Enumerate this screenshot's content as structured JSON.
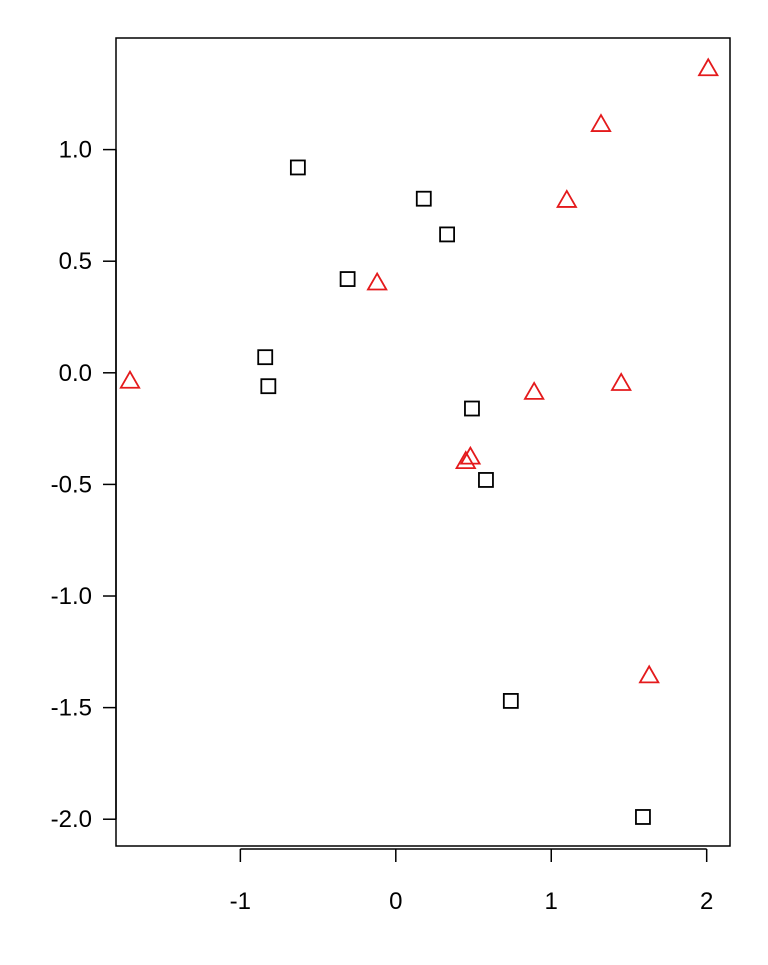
{
  "chart_data": {
    "type": "scatter",
    "title": "",
    "xlabel": "",
    "ylabel": "",
    "xlim": [
      -1.8,
      2.15
    ],
    "ylim": [
      -2.12,
      1.5
    ],
    "grid": false,
    "legend": "none",
    "x_ticks": [
      -1,
      0,
      1,
      2
    ],
    "x_tick_labels": [
      "-1",
      "0",
      "1",
      "2"
    ],
    "y_ticks": [
      -2.0,
      -1.5,
      -1.0,
      -0.5,
      0.0,
      0.5,
      1.0
    ],
    "y_tick_labels": [
      "-2.0",
      "-1.5",
      "-1.0",
      "-0.5",
      "0.0",
      "0.5",
      "1.0"
    ],
    "series": [
      {
        "marker": "square",
        "color": "#000000",
        "points": [
          {
            "x": -0.63,
            "y": 0.92
          },
          {
            "x": 0.18,
            "y": 0.78
          },
          {
            "x": 0.33,
            "y": 0.62
          },
          {
            "x": -0.31,
            "y": 0.42
          },
          {
            "x": -0.84,
            "y": 0.07
          },
          {
            "x": -0.82,
            "y": -0.06
          },
          {
            "x": 0.49,
            "y": -0.16
          },
          {
            "x": 0.58,
            "y": -0.48
          },
          {
            "x": 0.74,
            "y": -1.47
          },
          {
            "x": 1.59,
            "y": -1.99
          }
        ]
      },
      {
        "marker": "triangle",
        "color": "#e41a1c",
        "points": [
          {
            "x": 2.01,
            "y": 1.36
          },
          {
            "x": 1.32,
            "y": 1.11
          },
          {
            "x": 1.1,
            "y": 0.77
          },
          {
            "x": -0.12,
            "y": 0.4
          },
          {
            "x": -1.71,
            "y": -0.04
          },
          {
            "x": 0.89,
            "y": -0.09
          },
          {
            "x": 1.45,
            "y": -0.05
          },
          {
            "x": 0.48,
            "y": -0.38
          },
          {
            "x": 0.45,
            "y": -0.4
          },
          {
            "x": 1.63,
            "y": -1.36
          }
        ]
      }
    ]
  }
}
